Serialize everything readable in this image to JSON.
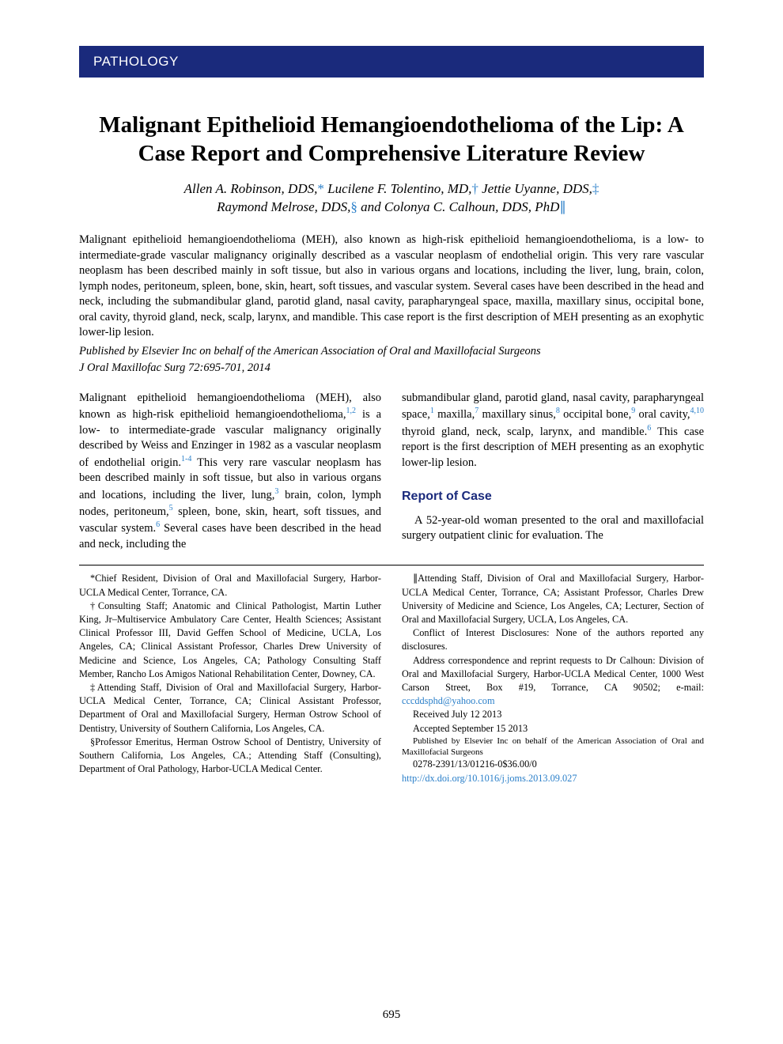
{
  "header": {
    "section": "PATHOLOGY"
  },
  "title": "Malignant Epithelioid Hemangioendothelioma of the Lip: A Case Report and Comprehensive Literature Review",
  "authors": {
    "line1_a": "Allen A. Robinson, DDS,",
    "sym1": "*",
    "line1_b": " Lucilene F. Tolentino, MD,",
    "sym2": "†",
    "line1_c": " Jettie Uyanne, DDS,",
    "sym3": "‡",
    "line2_a": "Raymond Melrose, DDS,",
    "sym4": "§",
    "line2_b": " and Colonya C. Calhoun, DDS, PhD",
    "sym5": "∥"
  },
  "abstract": {
    "text": "Malignant epithelioid hemangioendothelioma (MEH), also known as high-risk epithelioid hemangioendothelioma, is a low- to intermediate-grade vascular malignancy originally described as a vascular neoplasm of endothelial origin. This very rare vascular neoplasm has been described mainly in soft tissue, but also in various organs and locations, including the liver, lung, brain, colon, lymph nodes, peritoneum, spleen, bone, skin, heart, soft tissues, and vascular system. Several cases have been described in the head and neck, including the submandibular gland, parotid gland, nasal cavity, parapharyngeal space, maxilla, maxillary sinus, occipital bone, oral cavity, thyroid gland, neck, scalp, larynx, and mandible. This case report is the first description of MEH presenting as an exophytic lower-lip lesion.",
    "publisher": "Published by Elsevier Inc on behalf of the American Association of Oral and Maxillofacial Surgeons",
    "citation": "J Oral Maxillofac Surg 72:695-701, 2014"
  },
  "body": {
    "col1": {
      "p1_a": "Malignant epithelioid hemangioendothelioma (MEH), also known as high-risk epithelioid hemangioendothelioma,",
      "ref1": "1,2",
      "p1_b": " is a low- to intermediate-grade vascular malignancy originally described by Weiss and Enzinger in 1982 as a vascular neoplasm of endothelial origin.",
      "ref2": "1-4",
      "p1_c": " This very rare vascular neoplasm has been described mainly in soft tissue, but also in various organs and locations, including the liver, lung,",
      "ref3": "3",
      "p1_d": " brain, colon, lymph nodes, peritoneum,",
      "ref4": "5",
      "p1_e": " spleen, bone, skin, heart, soft tissues, and vascular system.",
      "ref5": "6",
      "p1_f": " Several cases have been described in the head and neck, including the"
    },
    "col2": {
      "p1_a": "submandibular gland, parotid gland, nasal cavity, parapharyngeal space,",
      "ref1": "1",
      "p1_b": " maxilla,",
      "ref2": "7",
      "p1_c": " maxillary sinus,",
      "ref3": "8",
      "p1_d": " occipital bone,",
      "ref4": "9",
      "p1_e": " oral cavity,",
      "ref5": "4,10",
      "p1_f": " thyroid gland, neck, scalp, larynx, and mandible.",
      "ref6": "6",
      "p1_g": " This case report is the first description of MEH presenting as an exophytic lower-lip lesion.",
      "heading": "Report of Case",
      "p2": "A 52-year-old woman presented to the oral and maxillofacial surgery outpatient clinic for evaluation. The"
    }
  },
  "footnotes": {
    "left": {
      "f1": "*Chief Resident, Division of Oral and Maxillofacial Surgery, Harbor-UCLA Medical Center, Torrance, CA.",
      "f2": "†Consulting Staff; Anatomic and Clinical Pathologist, Martin Luther King, Jr–Multiservice Ambulatory Care Center, Health Sciences; Assistant Clinical Professor III, David Geffen School of Medicine, UCLA, Los Angeles, CA; Clinical Assistant Professor, Charles Drew University of Medicine and Science, Los Angeles, CA; Pathology Consulting Staff Member, Rancho Los Amigos National Rehabilitation Center, Downey, CA.",
      "f3": "‡Attending Staff, Division of Oral and Maxillofacial Surgery, Harbor-UCLA Medical Center, Torrance, CA; Clinical Assistant Professor, Department of Oral and Maxillofacial Surgery, Herman Ostrow School of Dentistry, University of Southern California, Los Angeles, CA.",
      "f4": "§Professor Emeritus, Herman Ostrow School of Dentistry, University of Southern California, Los Angeles, CA.; Attending Staff (Consulting), Department of Oral Pathology, Harbor-UCLA Medical Center."
    },
    "right": {
      "f1": "∥Attending Staff, Division of Oral and Maxillofacial Surgery, Harbor-UCLA Medical Center, Torrance, CA; Assistant Professor, Charles Drew University of Medicine and Science, Los Angeles, CA; Lecturer, Section of Oral and Maxillofacial Surgery, UCLA, Los Angeles, CA.",
      "f2": "Conflict of Interest Disclosures: None of the authors reported any disclosures.",
      "f3_a": "Address correspondence and reprint requests to Dr Calhoun: Division of Oral and Maxillofacial Surgery, Harbor-UCLA Medical Center, 1000 West Carson Street, Box #19, Torrance, CA 90502; e-mail: ",
      "f3_link": "cccddsphd@yahoo.com",
      "f4": "Received July 12 2013",
      "f5": "Accepted September 15 2013",
      "f6": "Published by Elsevier Inc on behalf of the American Association of Oral and Maxillofacial Surgeons",
      "f7": "0278-2391/13/01216-0$36.00/0",
      "f8": "http://dx.doi.org/10.1016/j.joms.2013.09.027"
    }
  },
  "page_number": "695",
  "colors": {
    "header_bg": "#1a2a7c",
    "link": "#2a7fc9",
    "text": "#000000",
    "bg": "#ffffff"
  }
}
